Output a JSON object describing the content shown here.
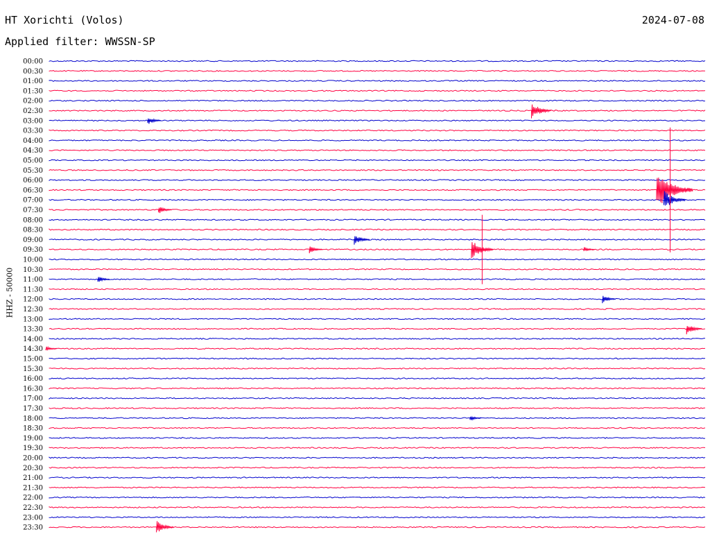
{
  "header": {
    "station": "HT Xorichti (Volos)",
    "date": "2024-07-08",
    "filter_label": "Applied filter: WWSSN-SP"
  },
  "channel_label": "HHZ - 50000",
  "colors": {
    "odd": "#0000cc",
    "even": "#ff0040"
  },
  "chart_data": {
    "type": "line",
    "title": "",
    "ylabel": "HHZ - 50000",
    "xlabel": "",
    "row_labels": [
      "00:00",
      "00:30",
      "01:00",
      "01:30",
      "02:00",
      "02:30",
      "03:00",
      "03:30",
      "04:00",
      "04:30",
      "05:00",
      "05:30",
      "06:00",
      "06:30",
      "07:00",
      "07:30",
      "08:00",
      "08:30",
      "09:00",
      "09:30",
      "10:00",
      "10:30",
      "11:00",
      "11:30",
      "12:00",
      "12:30",
      "13:00",
      "13:30",
      "14:00",
      "14:30",
      "15:00",
      "15:30",
      "16:00",
      "16:30",
      "17:00",
      "17:30",
      "18:00",
      "18:30",
      "19:00",
      "19:30",
      "20:00",
      "20:30",
      "21:00",
      "21:30",
      "22:00",
      "22:30",
      "23:00",
      "23:30"
    ],
    "row_minutes": 30,
    "series_colors": [
      "#0000cc",
      "#ff0040"
    ],
    "events": [
      {
        "row": "02:30",
        "minute": 22.5,
        "amp": 12
      },
      {
        "row": "03:00",
        "minute": 4.8,
        "amp": 6
      },
      {
        "row": "07:30",
        "minute": 5.3,
        "amp": 6
      },
      {
        "row": "09:00",
        "minute": 14.3,
        "amp": 8
      },
      {
        "row": "09:30",
        "minute": 12.2,
        "amp": 6
      },
      {
        "row": "09:30",
        "minute": 19.8,
        "amp": 14
      },
      {
        "row": "09:30",
        "minute": 24.7,
        "amp": 4
      },
      {
        "row": "09:30",
        "minute": 19.8,
        "amp": 50,
        "spike": true
      },
      {
        "row": "06:30",
        "minute": 28.6,
        "amp": 28
      },
      {
        "row": "07:00",
        "minute": 28.6,
        "amp": 14
      },
      {
        "row": "05:30",
        "minute": 28.4,
        "amp": 40,
        "spike": true
      },
      {
        "row": "06:30",
        "minute": 28.4,
        "amp": 90,
        "spike": true
      },
      {
        "row": "11:00",
        "minute": 2.5,
        "amp": 5
      },
      {
        "row": "12:00",
        "minute": 25.6,
        "amp": 6
      },
      {
        "row": "13:30",
        "minute": 29.5,
        "amp": 8
      },
      {
        "row": "14:30",
        "minute": 0.1,
        "amp": 4
      },
      {
        "row": "18:00",
        "minute": 19.5,
        "amp": 4
      },
      {
        "row": "23:30",
        "minute": 5.3,
        "amp": 10
      }
    ]
  }
}
